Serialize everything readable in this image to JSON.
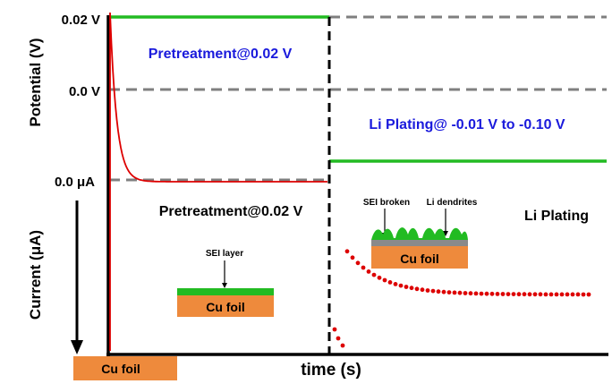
{
  "chart_data": {
    "type": "line",
    "title": "",
    "xlabel": "time (s)",
    "ylabel_top": "Potential (V)",
    "ylabel_bottom": "Current (μA)",
    "top_panel": {
      "tick_labels": [
        "0.02 V",
        "0.0 V"
      ],
      "series": [
        {
          "name": "Pretreatment potential",
          "label": "Pretreatment@0.02 V",
          "phase": "pretreatment",
          "value_label": "0.02 V"
        },
        {
          "name": "Li plating potential",
          "label": "Li Plating@ -0.01 V to -0.10 V",
          "phase": "plating"
        }
      ]
    },
    "bottom_panel": {
      "tick_labels": [
        "0.0 μA"
      ],
      "phase_labels": [
        "Pretreatment@0.02 V",
        "Li Plating"
      ],
      "series": [
        {
          "name": "Pretreatment current",
          "style": "solid",
          "shape": "exponential decay toward 0"
        },
        {
          "name": "Plating current",
          "style": "dotted",
          "shape": "sharp dip then recovery toward plateau"
        }
      ]
    },
    "annotations": {
      "left_electrode": "Cu foil",
      "sei_schematic": {
        "sei_label": "SEI layer",
        "foil_label": "Cu foil"
      },
      "plating_schematic": {
        "sei_label": "SEI broken",
        "dendrite_label": "Li dendrites",
        "foil_label": "Cu foil"
      }
    },
    "colors": {
      "axis": "#000000",
      "reference_line": "#7f7f7f",
      "potential_line": "#22bb22",
      "current_line": "#dd0000",
      "label_blue": "#1a1adc",
      "cu_foil": "#ee8a3c",
      "sei_green": "#22bb22",
      "sei_broken_gray": "#8a8a8a"
    }
  }
}
